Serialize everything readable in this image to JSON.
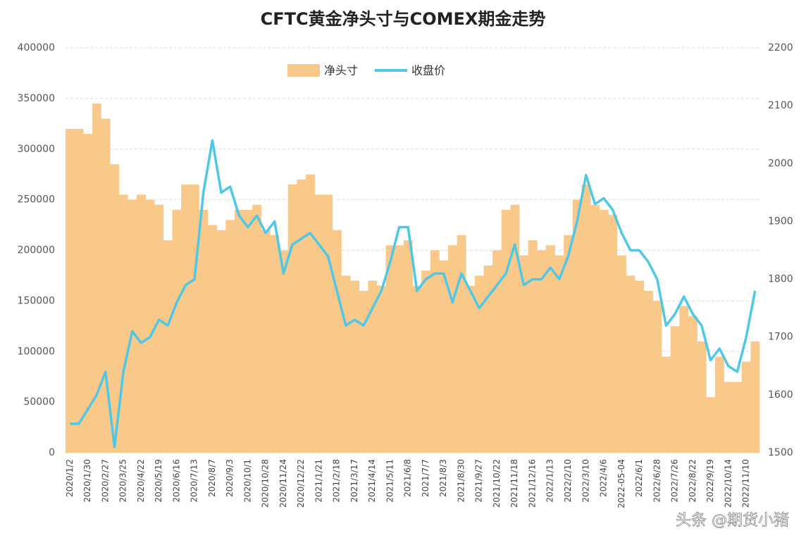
{
  "chart_data": {
    "type": "combo",
    "title": "CFTC黄金净头寸与COMEX期金走势",
    "watermark": "头条 @期货小猪",
    "categories": [
      "2020/1/2",
      null,
      "2020/1/30",
      null,
      "2020/2/27",
      null,
      "2020/3/25",
      null,
      "2020/4/22",
      null,
      "2020/5/19",
      null,
      "2020/6/16",
      null,
      "2020/7/13",
      null,
      "2020/8/7",
      null,
      "2020/9/3",
      null,
      "2020/10/1",
      null,
      "2020/10/28",
      null,
      "2020/11/24",
      null,
      "2020/12/22",
      null,
      "2021/1/21",
      null,
      "2021/2/18",
      null,
      "2021/3/17",
      null,
      "2021/4/14",
      null,
      "2021/5/11",
      null,
      "2021/6/8",
      null,
      "2021/7/7",
      null,
      "2021/8/3",
      null,
      "2021/8/30",
      null,
      "2021/9/27",
      null,
      "2021/10/22",
      null,
      "2021/11/18",
      null,
      "2021/12/16",
      null,
      "2022/1/13",
      null,
      "2022/2/10",
      null,
      "2022/3/10",
      null,
      "2022/4/6",
      null,
      "2022-05-04",
      null,
      "2022/6/1",
      null,
      "2022/6/28",
      null,
      "2022/7/26",
      null,
      "2022/8/22",
      null,
      "2022/9/19",
      null,
      "2022/10/14",
      null,
      "2022/11/10",
      null
    ],
    "series": [
      {
        "name": "净头寸",
        "kind": "bar",
        "color": "#f9c98a",
        "values": [
          320000,
          320000,
          315000,
          345000,
          330000,
          285000,
          255000,
          250000,
          255000,
          250000,
          245000,
          210000,
          240000,
          265000,
          265000,
          240000,
          225000,
          220000,
          230000,
          240000,
          240000,
          245000,
          220000,
          215000,
          200000,
          265000,
          270000,
          275000,
          255000,
          255000,
          220000,
          175000,
          170000,
          160000,
          170000,
          165000,
          205000,
          205000,
          210000,
          165000,
          180000,
          200000,
          190000,
          205000,
          215000,
          165000,
          175000,
          185000,
          200000,
          240000,
          245000,
          195000,
          210000,
          200000,
          205000,
          195000,
          215000,
          250000,
          265000,
          245000,
          240000,
          235000,
          195000,
          175000,
          170000,
          160000,
          150000,
          95000,
          125000,
          145000,
          135000,
          110000,
          55000,
          95000,
          70000,
          70000,
          90000,
          110000
        ]
      },
      {
        "name": "收盘价",
        "kind": "line",
        "axis": "y2",
        "color": "#4fc8e8",
        "values": [
          1550,
          1550,
          1575,
          1600,
          1640,
          1510,
          1640,
          1710,
          1690,
          1700,
          1730,
          1720,
          1760,
          1790,
          1800,
          1950,
          2040,
          1950,
          1960,
          1910,
          1890,
          1910,
          1880,
          1900,
          1810,
          1860,
          1870,
          1880,
          1860,
          1840,
          1780,
          1720,
          1730,
          1720,
          1750,
          1780,
          1830,
          1890,
          1890,
          1780,
          1800,
          1810,
          1810,
          1760,
          1810,
          1780,
          1750,
          1770,
          1790,
          1810,
          1860,
          1790,
          1800,
          1800,
          1820,
          1800,
          1840,
          1900,
          1980,
          1930,
          1940,
          1920,
          1880,
          1850,
          1850,
          1830,
          1800,
          1720,
          1740,
          1770,
          1740,
          1720,
          1660,
          1680,
          1650,
          1640,
          1700,
          1780
        ]
      }
    ],
    "ylim": [
      0,
      400000
    ],
    "yticks": [
      0,
      50000,
      100000,
      150000,
      200000,
      250000,
      300000,
      350000,
      400000
    ],
    "y2lim": [
      1500,
      2200
    ],
    "y2ticks": [
      1500,
      1600,
      1700,
      1800,
      1900,
      2000,
      2100,
      2200
    ],
    "grid": true,
    "legend": "top"
  }
}
